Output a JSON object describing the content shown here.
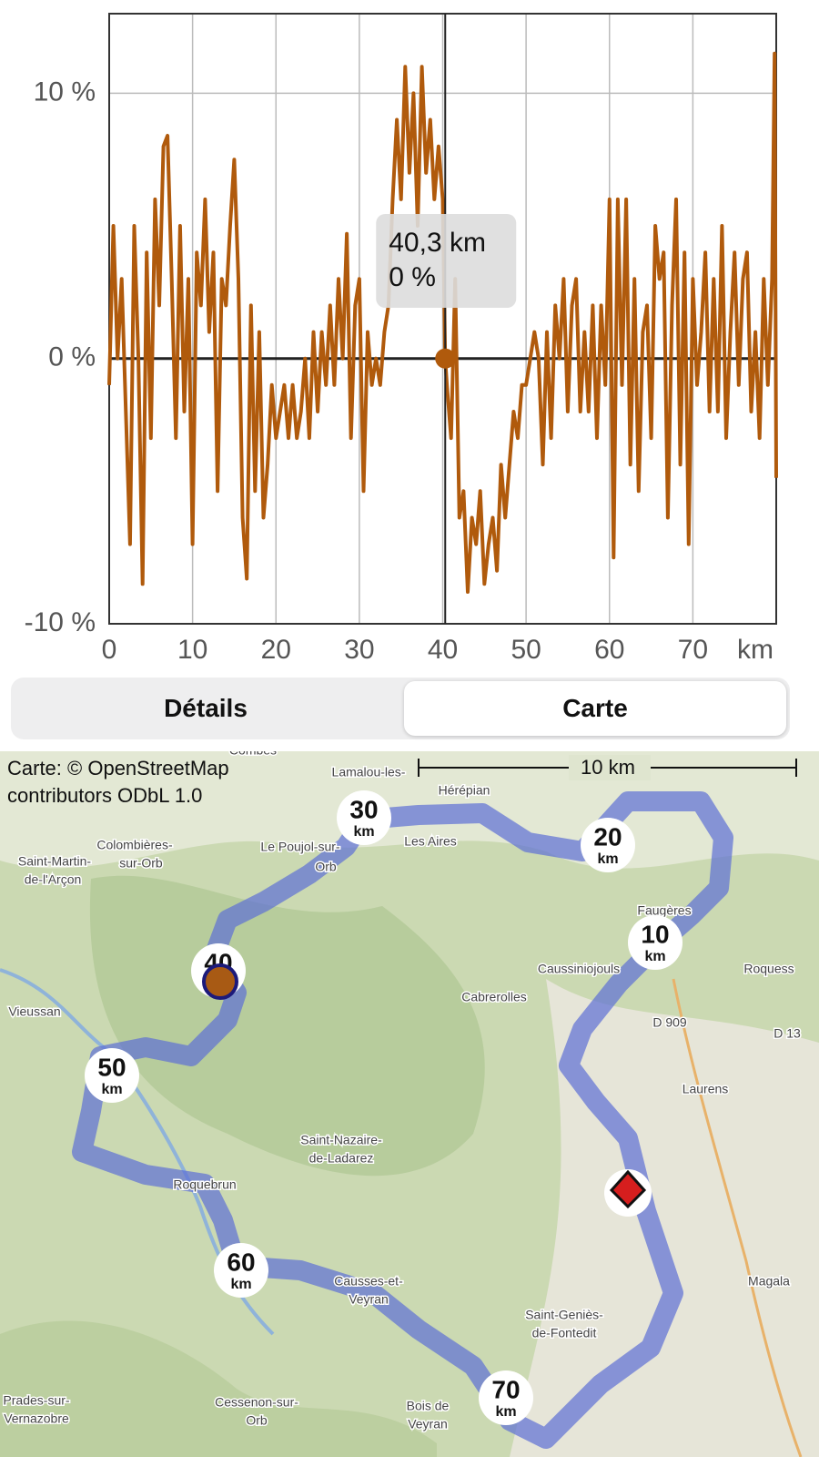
{
  "chart_data": {
    "type": "line",
    "color": "#b05a0c",
    "x": [
      0,
      0.5,
      1,
      1.5,
      2,
      2.5,
      3,
      3.5,
      4,
      4.5,
      5,
      5.5,
      6,
      6.5,
      7,
      7.5,
      8,
      8.5,
      9,
      9.5,
      10,
      10.5,
      11,
      11.5,
      12,
      12.5,
      13,
      13.5,
      14,
      14.5,
      15,
      15.5,
      16,
      16.5,
      17,
      17.5,
      18,
      18.5,
      19,
      19.5,
      20,
      20.5,
      21,
      21.5,
      22,
      22.5,
      23,
      23.5,
      24,
      24.5,
      25,
      25.5,
      26,
      26.5,
      27,
      27.5,
      28,
      28.5,
      29,
      29.5,
      30,
      30.5,
      31,
      31.5,
      32,
      32.5,
      33,
      33.5,
      34,
      34.5,
      35,
      35.5,
      36,
      36.5,
      37,
      37.5,
      38,
      38.5,
      39,
      39.5,
      40,
      40.3,
      40.5,
      41,
      41.5,
      42,
      42.5,
      43,
      43.5,
      44,
      44.5,
      45,
      45.5,
      46,
      46.5,
      47,
      47.5,
      48,
      48.5,
      49,
      49.5,
      50,
      50.5,
      51,
      51.5,
      52,
      52.5,
      53,
      53.5,
      54,
      54.5,
      55,
      55.5,
      56,
      56.5,
      57,
      57.5,
      58,
      58.5,
      59,
      59.5,
      60,
      60.5,
      61,
      61.5,
      62,
      62.5,
      63,
      63.5,
      64,
      64.5,
      65,
      65.5,
      66,
      66.5,
      67,
      67.5,
      68,
      68.5,
      69,
      69.5,
      70,
      70.5,
      71,
      71.5,
      72,
      72.5,
      73,
      73.5,
      74,
      74.5,
      75,
      75.5,
      76,
      76.5,
      77,
      77.5,
      78,
      78.5,
      79,
      79.5,
      79.8,
      80
    ],
    "values": [
      -1,
      5,
      0,
      3,
      -2,
      -7,
      5,
      0,
      -8.5,
      4,
      -3,
      6,
      2,
      8,
      8.4,
      3,
      -3,
      5,
      -2,
      3,
      -7,
      4,
      2,
      6,
      1,
      4,
      -5,
      3,
      2,
      5,
      7.5,
      3,
      -6,
      -8.3,
      2,
      -5,
      1,
      -6,
      -4,
      -1,
      -3,
      -2,
      -1,
      -3,
      -1,
      -3,
      -2,
      0,
      -3,
      1,
      -2,
      1,
      -1,
      2,
      -1,
      3,
      0,
      4.7,
      -3,
      2,
      3,
      -5,
      1,
      -1,
      0,
      -1,
      1,
      2,
      6,
      9,
      6,
      11,
      7,
      10,
      5,
      11,
      7,
      9,
      6,
      8,
      6,
      0,
      -1,
      -3,
      3,
      -6,
      -5,
      -8.8,
      -6,
      -7,
      -5,
      -8.5,
      -7,
      -6,
      -8,
      -4,
      -6,
      -4,
      -2,
      -3,
      -1,
      -1,
      0,
      1,
      0,
      -4,
      1,
      -3,
      2,
      0,
      3,
      -2,
      2,
      3,
      -2,
      1,
      -2,
      2,
      -3,
      2,
      -1,
      6,
      -7.5,
      6,
      -1,
      6,
      -4,
      3,
      -5,
      1,
      2,
      -3,
      5,
      3,
      4,
      -6,
      2,
      6,
      -4,
      4,
      -7,
      3,
      -1,
      1,
      4,
      -2,
      3,
      -2,
      5,
      -3,
      1,
      4,
      -1,
      3,
      4,
      -2,
      1,
      -3,
      3,
      -1,
      3,
      11.5,
      -4.5
    ],
    "xlim": [
      0,
      80
    ],
    "xticks": [
      0,
      10,
      20,
      30,
      40,
      50,
      60,
      70
    ],
    "x_label": "km",
    "ylim": [
      -10,
      13
    ],
    "yticks": [
      {
        "value": -10,
        "label": "-10 %"
      },
      {
        "value": 0,
        "label": "0 %"
      },
      {
        "value": 10,
        "label": "10 %"
      }
    ],
    "grid": true,
    "cursor": {
      "x": 40.3,
      "x_label": "40,3 km",
      "y": 0,
      "y_label": "0 %"
    }
  },
  "tabs": [
    "Détails",
    "Carte"
  ],
  "map": {
    "attribution": [
      "Carte: © OpenStreetMap",
      "contributors ODbL 1.0"
    ],
    "scale": "10 km",
    "markers": [
      {
        "number": "10",
        "unit": "km"
      },
      {
        "number": "20",
        "unit": "km"
      },
      {
        "number": "30",
        "unit": "km"
      },
      {
        "number": "40",
        "unit": ""
      },
      {
        "number": "50",
        "unit": "km"
      },
      {
        "number": "60",
        "unit": "km"
      },
      {
        "number": "70",
        "unit": "km"
      }
    ],
    "places": [
      "Combes",
      "Lamalou-les-",
      "Hérépian",
      "Les Aires",
      "Le Poujol-sur-",
      "Orb",
      "Colombières-",
      "sur-Orb",
      "Saint-Martin-",
      "de-l'Arçon",
      "Faugères",
      "Caussiniojouls",
      "Cabrerolles",
      "Roquess",
      "D 909",
      "D 13",
      "Vieussan",
      "Laurens",
      "Saint-Nazaire-",
      "de-Ladarez",
      "Roquebrun",
      "Causses-et-",
      "Veyran",
      "Saint-Geniès-",
      "de-Fontedit",
      "Magala",
      "Cessenon-sur-",
      "Orb",
      "Prades-sur-",
      "Vernazobre",
      "Bois de",
      "Veyran"
    ]
  }
}
